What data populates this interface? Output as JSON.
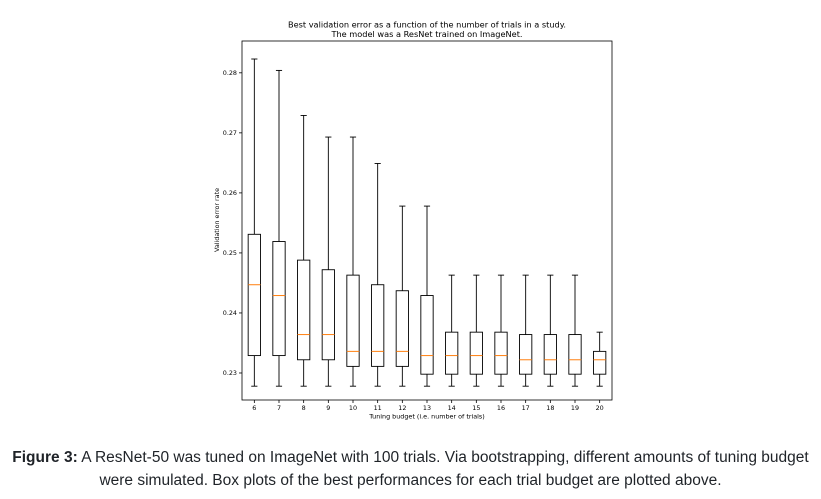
{
  "chart_data": {
    "type": "box",
    "title": "Best validation error as a function of the number of trials in a study.",
    "subtitle": "The model was a ResNet trained on ImageNet.",
    "xlabel": "Tuning budget (i.e. number of trials)",
    "ylabel": "Validation error rate",
    "ylim": [
      0.2255,
      0.2853
    ],
    "yticks": [
      "0.23",
      "0.24",
      "0.25",
      "0.26",
      "0.27",
      "0.28"
    ],
    "grid": false,
    "colors": {
      "box": "#000000",
      "median": "#ff7f0e"
    },
    "boxes": [
      {
        "x": "6",
        "whislo": 0.2278,
        "q1": 0.2329,
        "med": 0.2447,
        "q3": 0.2531,
        "whishi": 0.2823
      },
      {
        "x": "7",
        "whislo": 0.2278,
        "q1": 0.2329,
        "med": 0.2429,
        "q3": 0.2519,
        "whishi": 0.2804
      },
      {
        "x": "8",
        "whislo": 0.2278,
        "q1": 0.2322,
        "med": 0.2364,
        "q3": 0.2488,
        "whishi": 0.2729
      },
      {
        "x": "9",
        "whislo": 0.2278,
        "q1": 0.2322,
        "med": 0.2364,
        "q3": 0.2472,
        "whishi": 0.2693
      },
      {
        "x": "10",
        "whislo": 0.2278,
        "q1": 0.2311,
        "med": 0.2336,
        "q3": 0.2463,
        "whishi": 0.2693
      },
      {
        "x": "11",
        "whislo": 0.2278,
        "q1": 0.2311,
        "med": 0.2336,
        "q3": 0.2447,
        "whishi": 0.2649
      },
      {
        "x": "12",
        "whislo": 0.2278,
        "q1": 0.2311,
        "med": 0.2336,
        "q3": 0.2437,
        "whishi": 0.2578
      },
      {
        "x": "13",
        "whislo": 0.2278,
        "q1": 0.2298,
        "med": 0.2329,
        "q3": 0.2429,
        "whishi": 0.2578
      },
      {
        "x": "14",
        "whislo": 0.2278,
        "q1": 0.2298,
        "med": 0.2329,
        "q3": 0.2368,
        "whishi": 0.2463
      },
      {
        "x": "15",
        "whislo": 0.2278,
        "q1": 0.2298,
        "med": 0.2329,
        "q3": 0.2368,
        "whishi": 0.2463
      },
      {
        "x": "16",
        "whislo": 0.2278,
        "q1": 0.2298,
        "med": 0.2329,
        "q3": 0.2368,
        "whishi": 0.2463
      },
      {
        "x": "17",
        "whislo": 0.2278,
        "q1": 0.2298,
        "med": 0.2322,
        "q3": 0.2364,
        "whishi": 0.2463
      },
      {
        "x": "18",
        "whislo": 0.2278,
        "q1": 0.2298,
        "med": 0.2322,
        "q3": 0.2364,
        "whishi": 0.2463
      },
      {
        "x": "19",
        "whislo": 0.2278,
        "q1": 0.2298,
        "med": 0.2322,
        "q3": 0.2364,
        "whishi": 0.2463
      },
      {
        "x": "20",
        "whislo": 0.2278,
        "q1": 0.2298,
        "med": 0.2322,
        "q3": 0.2336,
        "whishi": 0.2368
      }
    ]
  },
  "caption": {
    "lead": "Figure 3:",
    "text": "A ResNet-50 was tuned on ImageNet with 100 trials. Via bootstrapping, different amounts of tuning budget were simulated. Box plots of the best performances for each trial budget are plotted above."
  }
}
